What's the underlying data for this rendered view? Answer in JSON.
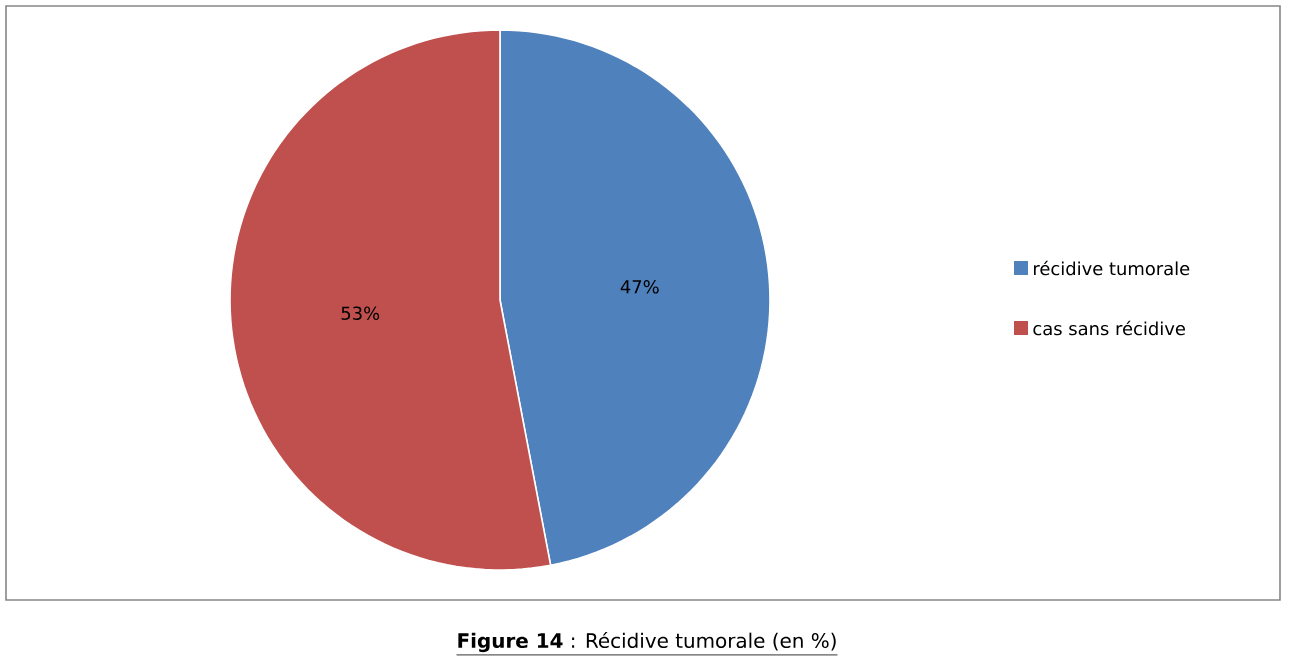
{
  "chart_data": {
    "type": "pie",
    "categories": [
      "récidive tumorale",
      "cas sans récidive"
    ],
    "values": [
      47,
      53
    ],
    "colors": [
      "#4f81bd",
      "#c0504d"
    ],
    "value_labels": [
      "47%",
      "53%"
    ],
    "legend": "right",
    "annotations": [
      "**Figure 14** : Récidive tumorale (en %)"
    ]
  }
}
